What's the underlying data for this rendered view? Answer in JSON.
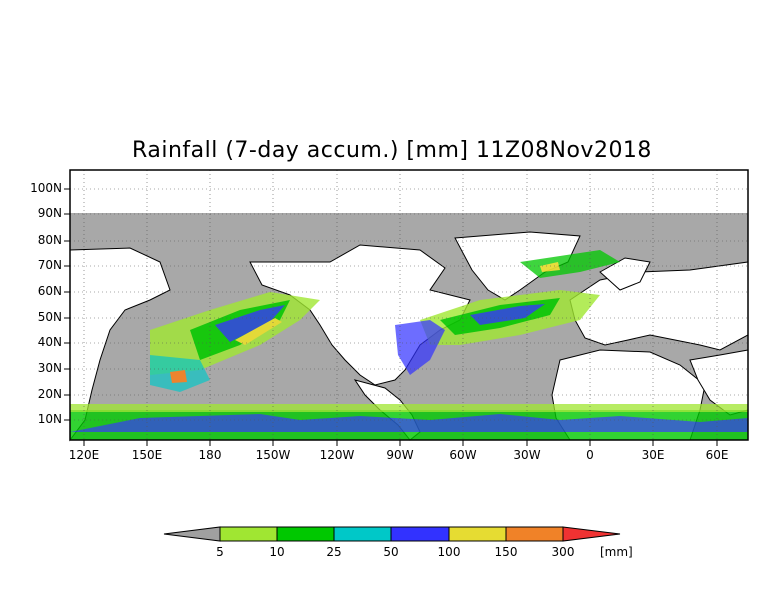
{
  "title": "Rainfall (7-day accum.) [mm] 11Z08Nov2018",
  "y_axis_labels": [
    "100N",
    "90N",
    "80N",
    "70N",
    "60N",
    "50N",
    "40N",
    "30N",
    "20N",
    "10N"
  ],
  "x_axis_labels": [
    "120E",
    "150E",
    "180",
    "150W",
    "120W",
    "90W",
    "60W",
    "30W",
    "0",
    "30E",
    "60E"
  ],
  "colorbar": {
    "labels": [
      "5",
      "10",
      "25",
      "50",
      "100",
      "150",
      "300"
    ],
    "unit": "[mm]",
    "colors": [
      "#a0a0a0",
      "#a0e632",
      "#00c800",
      "#00c8c8",
      "#3232ff",
      "#e6dc32",
      "#f08228",
      "#f03232"
    ]
  },
  "colors": {
    "ocean": "#a8a8a8",
    "land": "#ffffff",
    "outline": "#000000"
  }
}
